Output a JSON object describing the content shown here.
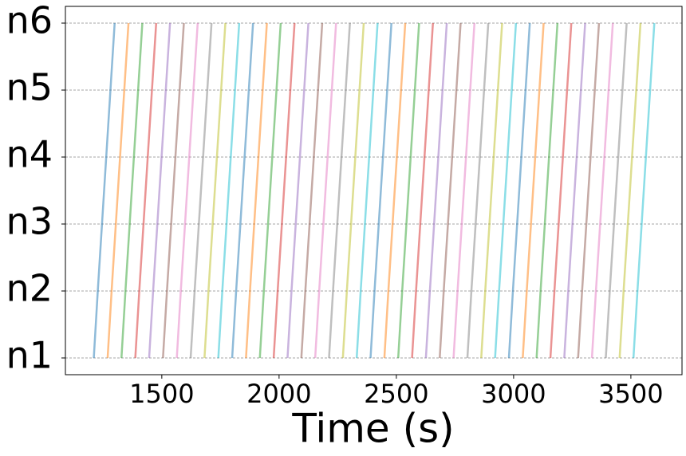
{
  "chart_data": {
    "type": "line",
    "xlabel": "Time (s)",
    "xlim": [
      1089,
      3718
    ],
    "xticks": [
      1500,
      2000,
      2500,
      3000,
      3500
    ],
    "ylim": [
      0.75,
      6.25
    ],
    "yticks": [
      {
        "value": 1,
        "label": "n1"
      },
      {
        "value": 2,
        "label": "n2"
      },
      {
        "value": 3,
        "label": "n3"
      },
      {
        "value": 4,
        "label": "n4"
      },
      {
        "value": 5,
        "label": "n5"
      },
      {
        "value": 6,
        "label": "n6"
      }
    ],
    "grid": "y",
    "alpha": 0.5,
    "series": [
      {
        "color": "#1f77b4",
        "x": [
          1210,
          1227,
          1245,
          1263,
          1281,
          1299
        ],
        "values": [
          1,
          2,
          3,
          4,
          5,
          6
        ]
      },
      {
        "color": "#ff7f0e",
        "x": [
          1269,
          1286,
          1304,
          1322,
          1340,
          1358
        ],
        "values": [
          1,
          2,
          3,
          4,
          5,
          6
        ]
      },
      {
        "color": "#2ca02c",
        "x": [
          1328,
          1345,
          1363,
          1381,
          1399,
          1417
        ],
        "values": [
          1,
          2,
          3,
          4,
          5,
          6
        ]
      },
      {
        "color": "#d62728",
        "x": [
          1387,
          1404,
          1422,
          1440,
          1458,
          1476
        ],
        "values": [
          1,
          2,
          3,
          4,
          5,
          6
        ]
      },
      {
        "color": "#9467bd",
        "x": [
          1446,
          1463,
          1481,
          1499,
          1517,
          1535
        ],
        "values": [
          1,
          2,
          3,
          4,
          5,
          6
        ]
      },
      {
        "color": "#8c564b",
        "x": [
          1505,
          1522,
          1540,
          1558,
          1576,
          1594
        ],
        "values": [
          1,
          2,
          3,
          4,
          5,
          6
        ]
      },
      {
        "color": "#e377c2",
        "x": [
          1564,
          1581,
          1599,
          1617,
          1635,
          1653
        ],
        "values": [
          1,
          2,
          3,
          4,
          5,
          6
        ]
      },
      {
        "color": "#7f7f7f",
        "x": [
          1623,
          1640,
          1658,
          1676,
          1694,
          1712
        ],
        "values": [
          1,
          2,
          3,
          4,
          5,
          6
        ]
      },
      {
        "color": "#bcbd22",
        "x": [
          1682,
          1699,
          1717,
          1735,
          1753,
          1771
        ],
        "values": [
          1,
          2,
          3,
          4,
          5,
          6
        ]
      },
      {
        "color": "#17becf",
        "x": [
          1741,
          1758,
          1776,
          1794,
          1812,
          1830
        ],
        "values": [
          1,
          2,
          3,
          4,
          5,
          6
        ]
      },
      {
        "color": "#1f77b4",
        "x": [
          1800,
          1817,
          1835,
          1853,
          1871,
          1889
        ],
        "values": [
          1,
          2,
          3,
          4,
          5,
          6
        ]
      },
      {
        "color": "#ff7f0e",
        "x": [
          1859,
          1876,
          1894,
          1912,
          1930,
          1948
        ],
        "values": [
          1,
          2,
          3,
          4,
          5,
          6
        ]
      },
      {
        "color": "#2ca02c",
        "x": [
          1918,
          1935,
          1953,
          1971,
          1989,
          2007
        ],
        "values": [
          1,
          2,
          3,
          4,
          5,
          6
        ]
      },
      {
        "color": "#d62728",
        "x": [
          1977,
          1994,
          2012,
          2030,
          2048,
          2066
        ],
        "values": [
          1,
          2,
          3,
          4,
          5,
          6
        ]
      },
      {
        "color": "#9467bd",
        "x": [
          2036,
          2053,
          2071,
          2089,
          2107,
          2125
        ],
        "values": [
          1,
          2,
          3,
          4,
          5,
          6
        ]
      },
      {
        "color": "#8c564b",
        "x": [
          2095,
          2112,
          2130,
          2148,
          2166,
          2184
        ],
        "values": [
          1,
          2,
          3,
          4,
          5,
          6
        ]
      },
      {
        "color": "#e377c2",
        "x": [
          2154,
          2171,
          2189,
          2207,
          2225,
          2243
        ],
        "values": [
          1,
          2,
          3,
          4,
          5,
          6
        ]
      },
      {
        "color": "#7f7f7f",
        "x": [
          2213,
          2230,
          2248,
          2266,
          2284,
          2302
        ],
        "values": [
          1,
          2,
          3,
          4,
          5,
          6
        ]
      },
      {
        "color": "#bcbd22",
        "x": [
          2272,
          2289,
          2307,
          2325,
          2343,
          2361
        ],
        "values": [
          1,
          2,
          3,
          4,
          5,
          6
        ]
      },
      {
        "color": "#17becf",
        "x": [
          2331,
          2348,
          2366,
          2384,
          2402,
          2420
        ],
        "values": [
          1,
          2,
          3,
          4,
          5,
          6
        ]
      },
      {
        "color": "#1f77b4",
        "x": [
          2390,
          2407,
          2425,
          2443,
          2461,
          2479
        ],
        "values": [
          1,
          2,
          3,
          4,
          5,
          6
        ]
      },
      {
        "color": "#ff7f0e",
        "x": [
          2449,
          2466,
          2484,
          2502,
          2520,
          2538
        ],
        "values": [
          1,
          2,
          3,
          4,
          5,
          6
        ]
      },
      {
        "color": "#2ca02c",
        "x": [
          2508,
          2525,
          2543,
          2561,
          2579,
          2597
        ],
        "values": [
          1,
          2,
          3,
          4,
          5,
          6
        ]
      },
      {
        "color": "#d62728",
        "x": [
          2567,
          2584,
          2602,
          2620,
          2638,
          2656
        ],
        "values": [
          1,
          2,
          3,
          4,
          5,
          6
        ]
      },
      {
        "color": "#9467bd",
        "x": [
          2626,
          2643,
          2661,
          2679,
          2697,
          2715
        ],
        "values": [
          1,
          2,
          3,
          4,
          5,
          6
        ]
      },
      {
        "color": "#8c564b",
        "x": [
          2685,
          2702,
          2720,
          2738,
          2756,
          2774
        ],
        "values": [
          1,
          2,
          3,
          4,
          5,
          6
        ]
      },
      {
        "color": "#e377c2",
        "x": [
          2744,
          2761,
          2779,
          2797,
          2815,
          2833
        ],
        "values": [
          1,
          2,
          3,
          4,
          5,
          6
        ]
      },
      {
        "color": "#7f7f7f",
        "x": [
          2803,
          2820,
          2838,
          2856,
          2874,
          2892
        ],
        "values": [
          1,
          2,
          3,
          4,
          5,
          6
        ]
      },
      {
        "color": "#bcbd22",
        "x": [
          2862,
          2879,
          2897,
          2915,
          2933,
          2951
        ],
        "values": [
          1,
          2,
          3,
          4,
          5,
          6
        ]
      },
      {
        "color": "#17becf",
        "x": [
          2921,
          2938,
          2956,
          2974,
          2992,
          3010
        ],
        "values": [
          1,
          2,
          3,
          4,
          5,
          6
        ]
      },
      {
        "color": "#1f77b4",
        "x": [
          2980,
          2997,
          3015,
          3033,
          3051,
          3069
        ],
        "values": [
          1,
          2,
          3,
          4,
          5,
          6
        ]
      },
      {
        "color": "#ff7f0e",
        "x": [
          3039,
          3056,
          3074,
          3092,
          3110,
          3128
        ],
        "values": [
          1,
          2,
          3,
          4,
          5,
          6
        ]
      },
      {
        "color": "#2ca02c",
        "x": [
          3098,
          3115,
          3133,
          3151,
          3169,
          3187
        ],
        "values": [
          1,
          2,
          3,
          4,
          5,
          6
        ]
      },
      {
        "color": "#d62728",
        "x": [
          3157,
          3174,
          3192,
          3210,
          3228,
          3246
        ],
        "values": [
          1,
          2,
          3,
          4,
          5,
          6
        ]
      },
      {
        "color": "#9467bd",
        "x": [
          3216,
          3233,
          3251,
          3269,
          3287,
          3305
        ],
        "values": [
          1,
          2,
          3,
          4,
          5,
          6
        ]
      },
      {
        "color": "#8c564b",
        "x": [
          3275,
          3292,
          3310,
          3328,
          3346,
          3364
        ],
        "values": [
          1,
          2,
          3,
          4,
          5,
          6
        ]
      },
      {
        "color": "#e377c2",
        "x": [
          3334,
          3351,
          3369,
          3387,
          3405,
          3423
        ],
        "values": [
          1,
          2,
          3,
          4,
          5,
          6
        ]
      },
      {
        "color": "#7f7f7f",
        "x": [
          3393,
          3410,
          3428,
          3446,
          3464,
          3482
        ],
        "values": [
          1,
          2,
          3,
          4,
          5,
          6
        ]
      },
      {
        "color": "#bcbd22",
        "x": [
          3452,
          3469,
          3487,
          3505,
          3523,
          3541
        ],
        "values": [
          1,
          2,
          3,
          4,
          5,
          6
        ]
      },
      {
        "color": "#17becf",
        "x": [
          3511,
          3528,
          3546,
          3564,
          3582,
          3600
        ],
        "values": [
          1,
          2,
          3,
          4,
          5,
          6
        ]
      }
    ]
  }
}
